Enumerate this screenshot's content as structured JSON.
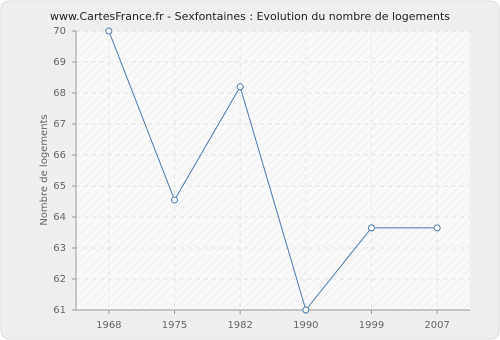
{
  "chart_data": {
    "type": "line",
    "title": "www.CartesFrance.fr - Sexfontaines : Evolution du nombre de logements",
    "y_label": "Nombre de logements",
    "categories": [
      "1968",
      "1975",
      "1982",
      "1990",
      "1999",
      "2007"
    ],
    "series": [
      {
        "name": "Nombre de logements",
        "color": "#4f7bab",
        "values": [
          70,
          64.55,
          68.2,
          61,
          63.65,
          63.65
        ]
      }
    ],
    "ylim": [
      61,
      70
    ],
    "yticks": [
      61,
      62,
      63,
      64,
      65,
      66,
      67,
      68,
      69,
      70
    ],
    "grid": true
  }
}
